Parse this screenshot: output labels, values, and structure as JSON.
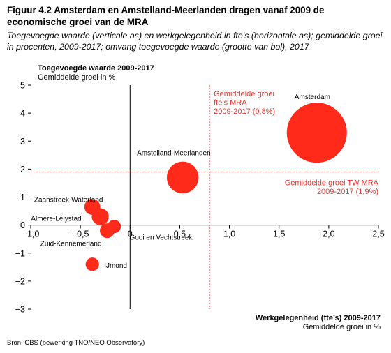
{
  "figure": {
    "title": "Figuur 4.2 Amsterdam en Amstelland-Meerlanden dragen vanaf 2009 de economische groei van de MRA",
    "subtitle": "Toegevoegde waarde (verticale as) en werkgelegenheid in fte’s (horizontale as); gemiddelde groei in procenten, 2009-2017; omvang toegevoegde waarde (grootte van bol), 2017",
    "source": "Bron: CBS (bewerking TNO/NEO Observatory)"
  },
  "chart_data": {
    "type": "scatter",
    "ylabel": "Toegevoegde waarde 2009-2017",
    "ylabel_sub": "Gemiddelde groei in %",
    "xlabel": "Werkgelegenheid (fte’s) 2009-2017",
    "xlabel_sub": "Gemiddelde groei in %",
    "xlim": [
      -1.0,
      2.5
    ],
    "ylim": [
      -3,
      5
    ],
    "x_ticks": [
      -1.0,
      -0.5,
      0,
      0.5,
      1.0,
      1.5,
      2.0,
      2.5
    ],
    "x_tick_labels": [
      "−1,0",
      "−0,5",
      "0",
      "0,5",
      "1,0",
      "1,5",
      "2,0",
      "2,5"
    ],
    "y_ticks": [
      -3,
      -2,
      -1,
      0,
      1,
      2,
      3,
      4,
      5
    ],
    "y_tick_labels": [
      "−3",
      "−2",
      "−1",
      "0",
      "1",
      "2",
      "3",
      "4",
      "5"
    ],
    "grid": false,
    "bubble_color": "#ff2a1a",
    "points": [
      {
        "name": "Amsterdam",
        "x": 1.88,
        "y": 3.3,
        "size": 100
      },
      {
        "name": "Amstelland-Meerlanden",
        "x": 0.53,
        "y": 1.7,
        "size": 28
      },
      {
        "name": "Zaanstreek-Waterland",
        "x": -0.38,
        "y": 0.65,
        "size": 7
      },
      {
        "name": "Almere-Lelystad",
        "x": -0.3,
        "y": 0.3,
        "size": 8
      },
      {
        "name": "Gooi en Vechtstreek",
        "x": -0.16,
        "y": -0.05,
        "size": 5
      },
      {
        "name": "Zuid-Kennemerland",
        "x": -0.23,
        "y": -0.2,
        "size": 6
      },
      {
        "name": "IJmond",
        "x": -0.38,
        "y": -1.4,
        "size": 5
      }
    ],
    "reference_lines": [
      {
        "axis": "x",
        "value": 0.8,
        "label_lines": [
          "Gemiddelde groei",
          "fte’s MRA",
          "2009-2017 (0,8%)"
        ]
      },
      {
        "axis": "y",
        "value": 1.9,
        "label_lines": [
          "Gemiddelde groei TW MRA",
          "2009-2017 (1,9%)"
        ]
      }
    ],
    "reference_color": "#e8322a"
  }
}
